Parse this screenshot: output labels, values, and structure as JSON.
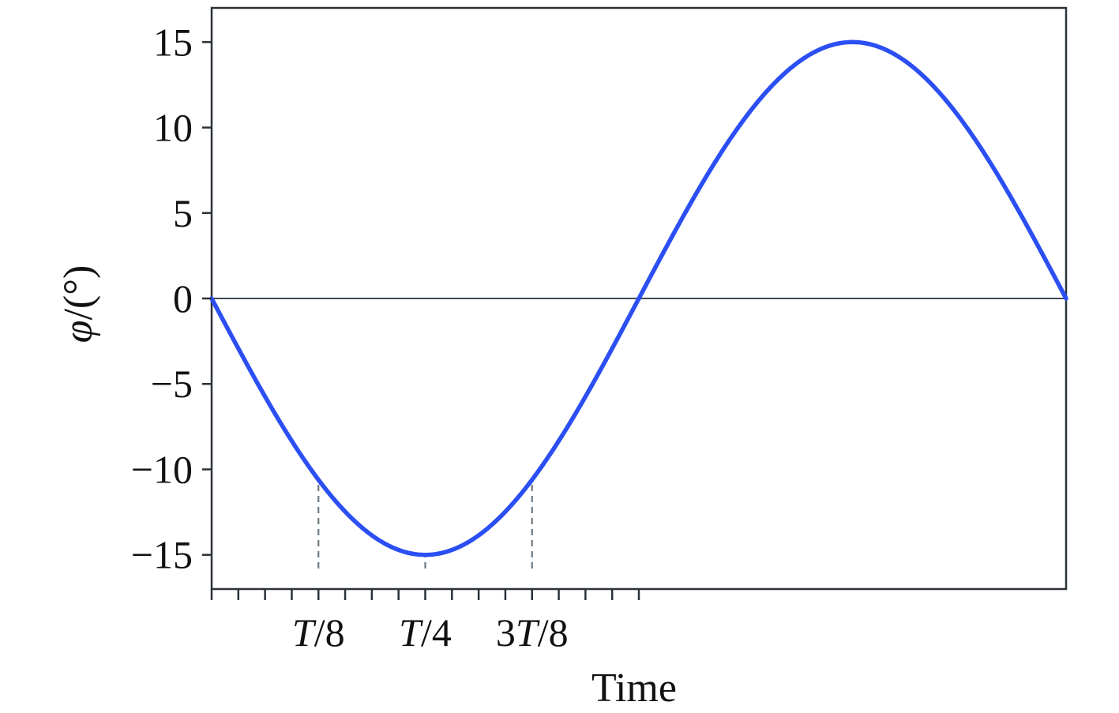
{
  "chart_data": {
    "type": "line",
    "title": "",
    "xlabel": "Time",
    "ylabel": "φ/(°)",
    "ylabel_parts": {
      "symbol": "φ",
      "unit": "/(°)"
    },
    "xlim": [
      0,
      1
    ],
    "ylim": [
      -17,
      17
    ],
    "yticks": [
      15,
      10,
      5,
      0,
      -5,
      -10,
      -15
    ],
    "ytick_labels": [
      "15",
      "10",
      "5",
      "0",
      "−5",
      "−10",
      "−15"
    ],
    "xticks_minor_count": 16,
    "xticks_minor_step": 0.03125,
    "xtick_labels": [
      {
        "x": 0.125,
        "italic": "T",
        "rest": "/8",
        "prefix": ""
      },
      {
        "x": 0.25,
        "italic": "T",
        "rest": "/4",
        "prefix": ""
      },
      {
        "x": 0.375,
        "italic": "T",
        "rest": "/8",
        "prefix": "3"
      }
    ],
    "series": [
      {
        "function": "y = -15 * sin(2π x)",
        "amplitude": 15,
        "period": 1,
        "color": "#2b4ff2",
        "x": [
          0,
          0.0625,
          0.125,
          0.1875,
          0.25,
          0.3125,
          0.375,
          0.4375,
          0.5,
          0.5625,
          0.625,
          0.6875,
          0.75,
          0.8125,
          0.875,
          0.9375,
          1.0
        ],
        "values": [
          0,
          -5.74,
          -10.61,
          -13.86,
          -15,
          -13.86,
          -10.61,
          -5.74,
          0,
          5.74,
          10.61,
          13.86,
          15,
          13.86,
          10.61,
          5.74,
          0
        ]
      }
    ],
    "reference_lines": [
      {
        "orientation": "horizontal",
        "y": 0,
        "color": "#3d4a52"
      },
      {
        "orientation": "vertical",
        "x": 0.125,
        "y_from": -15.8,
        "y_to": -10.61,
        "style": "dashed",
        "color": "#6c7a84"
      },
      {
        "orientation": "vertical",
        "x": 0.25,
        "y_from": -15.8,
        "y_to": -15,
        "style": "dashed",
        "color": "#6c7a84"
      },
      {
        "orientation": "vertical",
        "x": 0.375,
        "y_from": -15.8,
        "y_to": -10.61,
        "style": "dashed",
        "color": "#6c7a84"
      }
    ],
    "grid": false,
    "legend": "none",
    "colors": {
      "axis": "#2b3238",
      "line": "#2b4ff2"
    }
  }
}
